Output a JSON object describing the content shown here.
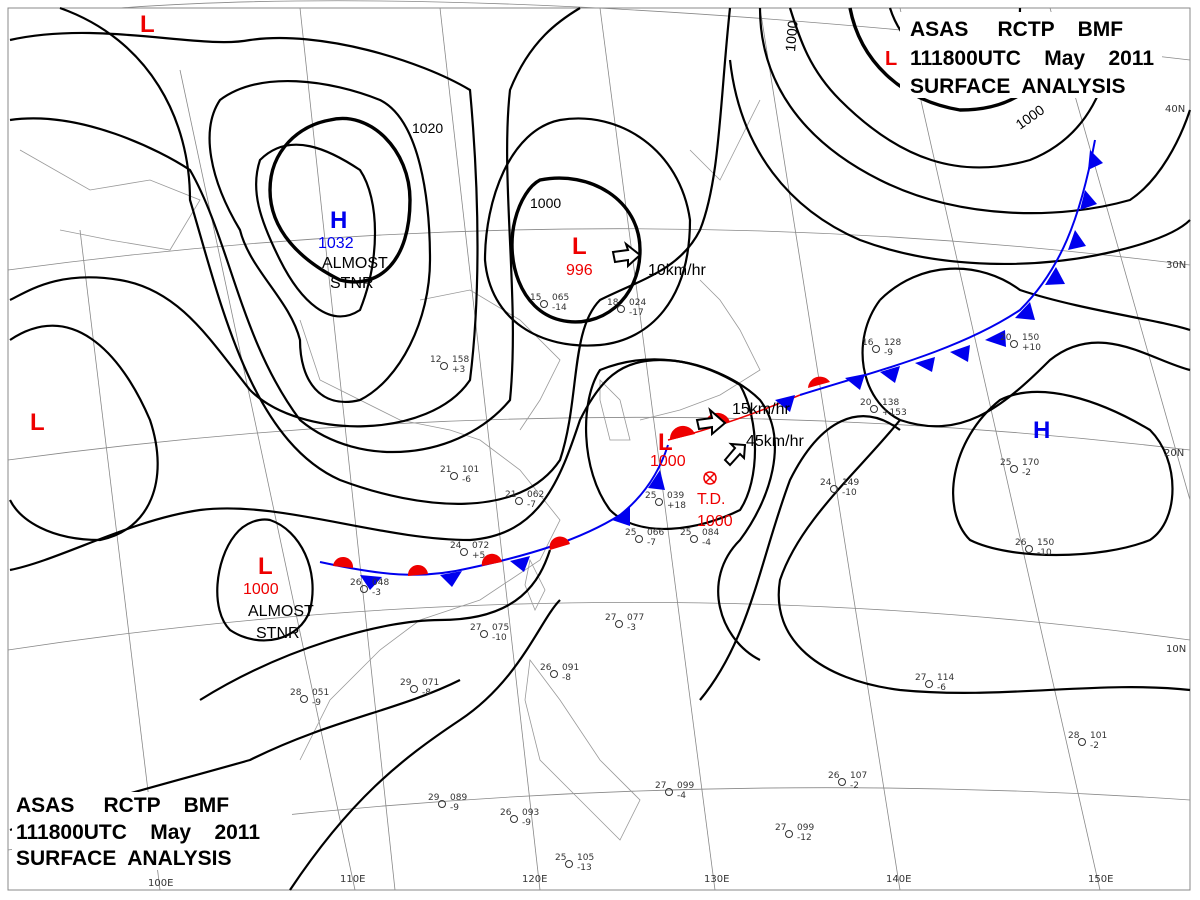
{
  "header": {
    "line1": "ASAS     RCTP    BMF",
    "line2": "111800UTC    May    2011",
    "line3": "SURFACE  ANALYSIS"
  },
  "lon_labels": [
    "100E",
    "110E",
    "120E",
    "130E",
    "140E",
    "150E"
  ],
  "lat_labels": [
    "10N",
    "20N",
    "30N",
    "40N"
  ],
  "pressure_systems": [
    {
      "type": "H",
      "pressure": "1032",
      "note1": "ALMOST",
      "note2": "STNR"
    },
    {
      "type": "L",
      "pressure": "996",
      "motion": "10km/hr"
    },
    {
      "type": "L",
      "pressure": "1000",
      "motion": "15km/hr"
    },
    {
      "type": "T.D.",
      "pressure": "1000",
      "motion": "45km/hr"
    },
    {
      "type": "L",
      "pressure": "1000",
      "note1": "ALMOST",
      "note2": "STNR"
    },
    {
      "type": "H"
    },
    {
      "type": "L"
    },
    {
      "type": "L"
    }
  ],
  "isobar_labels": [
    "1020",
    "1000",
    "1000",
    "1000"
  ],
  "stations": [
    {
      "t": "26",
      "p": "048",
      "d": "-3"
    },
    {
      "t": "24",
      "p": "072",
      "d": "+5"
    },
    {
      "t": "25",
      "p": "066",
      "d": "-7"
    },
    {
      "t": "25",
      "p": "084",
      "d": "-4"
    },
    {
      "t": "25",
      "p": "039",
      "d": "+18"
    },
    {
      "t": "27",
      "p": "075",
      "d": "-10"
    },
    {
      "t": "29",
      "p": "071",
      "d": "-8"
    },
    {
      "t": "28",
      "p": "051",
      "d": "-9"
    },
    {
      "t": "21",
      "p": "101",
      "d": "-6"
    },
    {
      "t": "21",
      "p": "062",
      "d": "-7"
    },
    {
      "t": "20",
      "p": "138",
      "d": "+153"
    },
    {
      "t": "16",
      "p": "128",
      "d": "-9"
    },
    {
      "t": "20",
      "p": "150",
      "d": "+10"
    },
    {
      "t": "25",
      "p": "170",
      "d": "-2"
    },
    {
      "t": "24",
      "p": "149",
      "d": "-10"
    },
    {
      "t": "26",
      "p": "150",
      "d": "-10"
    },
    {
      "t": "27",
      "p": "114",
      "d": "-6"
    },
    {
      "t": "28",
      "p": "101",
      "d": "-2"
    },
    {
      "t": "26",
      "p": "107",
      "d": "-2"
    },
    {
      "t": "27",
      "p": "099",
      "d": "-12"
    },
    {
      "t": "27",
      "p": "099",
      "d": "-4"
    },
    {
      "t": "29",
      "p": "089",
      "d": "-9"
    },
    {
      "t": "26",
      "p": "093",
      "d": "-9"
    },
    {
      "t": "25",
      "p": "105",
      "d": "-13"
    },
    {
      "t": "26",
      "p": "091",
      "d": "-8"
    },
    {
      "t": "27",
      "p": "077",
      "d": "-3"
    },
    {
      "t": "12",
      "p": "158",
      "d": "+3"
    },
    {
      "t": "15",
      "p": "065",
      "d": "-14"
    },
    {
      "t": "18",
      "p": "024",
      "d": "-17"
    }
  ],
  "colors": {
    "low": "#ee0000",
    "high": "#0000ee",
    "cold_front": "#0000ee",
    "warm_front": "#ee0000"
  }
}
